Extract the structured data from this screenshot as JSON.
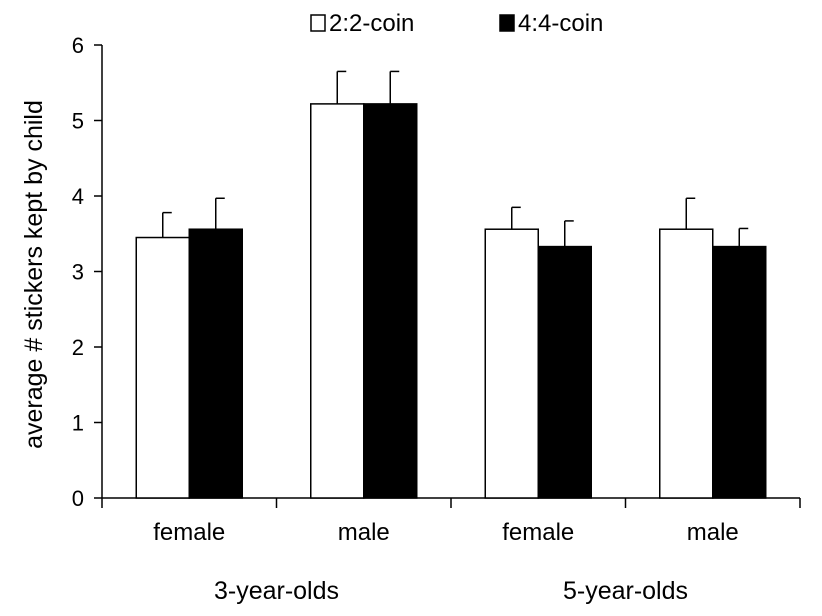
{
  "chart_data": {
    "type": "bar",
    "ylabel": "average # stickers kept by child",
    "ylim": [
      0,
      6
    ],
    "yticks": [
      "0",
      "1",
      "2",
      "3",
      "4",
      "5",
      "6"
    ],
    "grid": false,
    "legend_position": "top-center",
    "categories": [
      "female",
      "male",
      "female",
      "male"
    ],
    "groups": [
      {
        "label": "3-year-olds",
        "categories": [
          0,
          1
        ]
      },
      {
        "label": "5-year-olds",
        "categories": [
          2,
          3
        ]
      }
    ],
    "series": [
      {
        "name": "2:2-coin",
        "color": "#ffffff",
        "values": [
          3.45,
          5.22,
          3.56,
          3.56
        ],
        "errors": [
          0.33,
          0.43,
          0.29,
          0.41
        ]
      },
      {
        "name": "4:4-coin",
        "color": "#000000",
        "values": [
          3.56,
          5.22,
          3.33,
          3.33
        ],
        "errors": [
          0.41,
          0.43,
          0.34,
          0.24
        ]
      }
    ]
  }
}
